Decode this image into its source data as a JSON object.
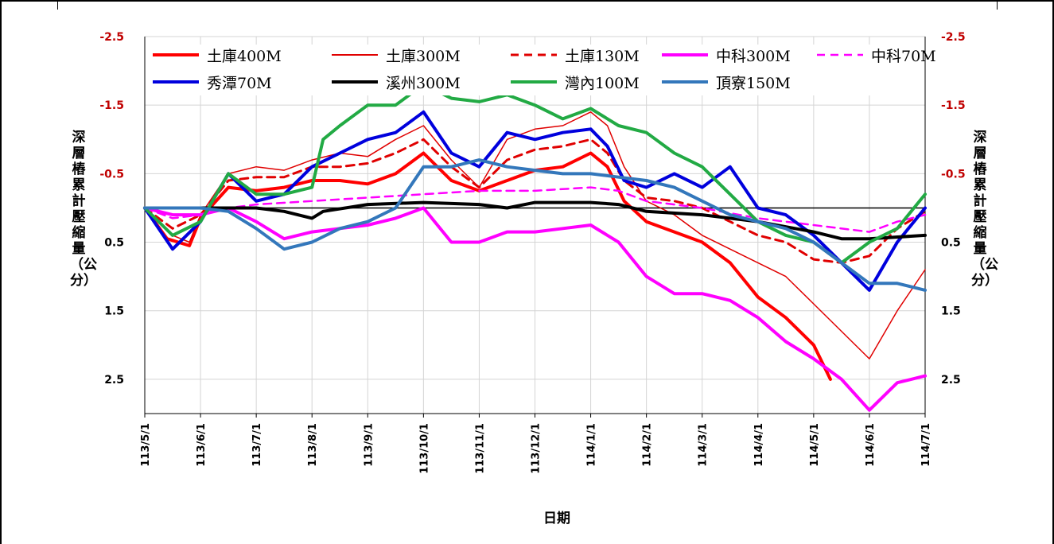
{
  "chart_data": {
    "type": "line",
    "xlabel": "日期",
    "ylabel_left": "深層樁累計壓縮量（公分）",
    "ylabel_right": "深層樁累計壓縮量（公分）",
    "ylim": [
      -2.5,
      3.0
    ],
    "y_inverted": true,
    "y_ticks": [
      "-2.5",
      "-1.5",
      "-0.5",
      "0.5",
      "1.5",
      "2.5"
    ],
    "y_tick_values": [
      -2.5,
      -1.5,
      -0.5,
      0.5,
      1.5,
      2.5
    ],
    "y_tick_color_negative": "#c00000",
    "x_ticks": [
      "113/5/1",
      "113/6/1",
      "113/7/1",
      "113/8/1",
      "113/9/1",
      "113/10/1",
      "113/11/1",
      "113/12/1",
      "114/1/1",
      "114/2/1",
      "114/3/1",
      "114/4/1",
      "114/5/1",
      "114/6/1",
      "114/7/1"
    ],
    "grid": true,
    "legend_position": "top",
    "series": [
      {
        "name": "土庫400M",
        "color": "#ff0000",
        "width": 4,
        "dash": "",
        "points": [
          [
            0,
            0
          ],
          [
            0.4,
            0.45
          ],
          [
            0.8,
            0.55
          ],
          [
            1,
            0.15
          ],
          [
            1.5,
            -0.3
          ],
          [
            2,
            -0.25
          ],
          [
            2.5,
            -0.3
          ],
          [
            3,
            -0.4
          ],
          [
            3.5,
            -0.4
          ],
          [
            4,
            -0.35
          ],
          [
            4.5,
            -0.5
          ],
          [
            5,
            -0.8
          ],
          [
            5.5,
            -0.4
          ],
          [
            6,
            -0.25
          ],
          [
            6.5,
            -0.4
          ],
          [
            7,
            -0.55
          ],
          [
            7.5,
            -0.6
          ],
          [
            8,
            -0.8
          ],
          [
            8.3,
            -0.6
          ],
          [
            8.6,
            -0.1
          ],
          [
            9,
            0.2
          ],
          [
            9.5,
            0.35
          ],
          [
            10,
            0.5
          ],
          [
            10.5,
            0.8
          ],
          [
            11,
            1.3
          ],
          [
            11.5,
            1.6
          ],
          [
            12,
            2.0
          ],
          [
            12.3,
            2.5
          ]
        ]
      },
      {
        "name": "土庫300M",
        "color": "#e00000",
        "width": 1.5,
        "dash": "",
        "points": [
          [
            0,
            0
          ],
          [
            0.5,
            0.4
          ],
          [
            0.8,
            0.5
          ],
          [
            1,
            0.1
          ],
          [
            1.5,
            -0.5
          ],
          [
            2,
            -0.6
          ],
          [
            2.5,
            -0.55
          ],
          [
            3,
            -0.7
          ],
          [
            3.5,
            -0.8
          ],
          [
            4,
            -0.75
          ],
          [
            4.5,
            -1.0
          ],
          [
            5,
            -1.2
          ],
          [
            5.5,
            -0.7
          ],
          [
            6,
            -0.3
          ],
          [
            6.5,
            -1.0
          ],
          [
            7,
            -1.15
          ],
          [
            7.5,
            -1.2
          ],
          [
            8,
            -1.4
          ],
          [
            8.3,
            -1.2
          ],
          [
            8.6,
            -0.6
          ],
          [
            9,
            -0.1
          ],
          [
            9.5,
            0.1
          ],
          [
            10,
            0.4
          ],
          [
            10.5,
            0.6
          ],
          [
            11,
            0.8
          ],
          [
            11.5,
            1.0
          ],
          [
            12,
            1.4
          ],
          [
            12.5,
            1.8
          ],
          [
            13,
            2.2
          ],
          [
            13.5,
            1.5
          ],
          [
            14,
            0.9
          ]
        ]
      },
      {
        "name": "土庫130M",
        "color": "#e00000",
        "width": 3,
        "dash": "10,7",
        "points": [
          [
            0,
            0
          ],
          [
            0.5,
            0.3
          ],
          [
            1,
            0.1
          ],
          [
            1.5,
            -0.4
          ],
          [
            2,
            -0.45
          ],
          [
            2.5,
            -0.45
          ],
          [
            3,
            -0.6
          ],
          [
            3.5,
            -0.6
          ],
          [
            4,
            -0.65
          ],
          [
            4.5,
            -0.8
          ],
          [
            5,
            -1.0
          ],
          [
            5.5,
            -0.6
          ],
          [
            6,
            -0.3
          ],
          [
            6.5,
            -0.7
          ],
          [
            7,
            -0.85
          ],
          [
            7.5,
            -0.9
          ],
          [
            8,
            -1.0
          ],
          [
            8.3,
            -0.8
          ],
          [
            8.6,
            -0.4
          ],
          [
            9,
            -0.15
          ],
          [
            9.5,
            -0.1
          ],
          [
            10,
            0.0
          ],
          [
            10.5,
            0.2
          ],
          [
            11,
            0.4
          ],
          [
            11.5,
            0.5
          ],
          [
            12,
            0.75
          ],
          [
            12.5,
            0.8
          ],
          [
            13,
            0.7
          ],
          [
            13.5,
            0.3
          ],
          [
            14,
            0.05
          ]
        ]
      },
      {
        "name": "中科300M",
        "color": "#ff00ff",
        "width": 4,
        "dash": "",
        "points": [
          [
            0,
            0
          ],
          [
            0.5,
            0.1
          ],
          [
            1,
            0.1
          ],
          [
            1.5,
            0.0
          ],
          [
            2,
            0.2
          ],
          [
            2.5,
            0.45
          ],
          [
            3,
            0.35
          ],
          [
            3.5,
            0.3
          ],
          [
            4,
            0.25
          ],
          [
            4.5,
            0.15
          ],
          [
            5,
            0.0
          ],
          [
            5.5,
            0.5
          ],
          [
            6,
            0.5
          ],
          [
            6.5,
            0.35
          ],
          [
            7,
            0.35
          ],
          [
            7.5,
            0.3
          ],
          [
            8,
            0.25
          ],
          [
            8.5,
            0.5
          ],
          [
            9,
            1.0
          ],
          [
            9.5,
            1.25
          ],
          [
            10,
            1.25
          ],
          [
            10.5,
            1.35
          ],
          [
            11,
            1.6
          ],
          [
            11.5,
            1.95
          ],
          [
            12,
            2.2
          ],
          [
            12.5,
            2.5
          ],
          [
            13,
            2.95
          ],
          [
            13.5,
            2.55
          ],
          [
            14,
            2.45
          ]
        ]
      },
      {
        "name": "中科70M",
        "color": "#ff00ff",
        "width": 2.5,
        "dash": "10,7",
        "points": [
          [
            0,
            0
          ],
          [
            0.5,
            0.15
          ],
          [
            1,
            0.1
          ],
          [
            1.5,
            0.0
          ],
          [
            2,
            -0.05
          ],
          [
            3,
            -0.1
          ],
          [
            4,
            -0.15
          ],
          [
            5,
            -0.2
          ],
          [
            6,
            -0.25
          ],
          [
            7,
            -0.25
          ],
          [
            8,
            -0.3
          ],
          [
            8.5,
            -0.25
          ],
          [
            9,
            -0.1
          ],
          [
            10,
            0.0
          ],
          [
            11,
            0.15
          ],
          [
            12,
            0.25
          ],
          [
            13,
            0.35
          ],
          [
            13.5,
            0.2
          ],
          [
            14,
            0.1
          ]
        ]
      },
      {
        "name": "秀潭70M",
        "color": "#0000dd",
        "width": 4,
        "dash": "",
        "points": [
          [
            0,
            0
          ],
          [
            0.5,
            0.6
          ],
          [
            1,
            0.2
          ],
          [
            1.5,
            -0.5
          ],
          [
            2,
            -0.1
          ],
          [
            2.5,
            -0.2
          ],
          [
            3,
            -0.6
          ],
          [
            3.5,
            -0.8
          ],
          [
            4,
            -1.0
          ],
          [
            4.5,
            -1.1
          ],
          [
            5,
            -1.4
          ],
          [
            5.5,
            -0.8
          ],
          [
            6,
            -0.6
          ],
          [
            6.5,
            -1.1
          ],
          [
            7,
            -1.0
          ],
          [
            7.5,
            -1.1
          ],
          [
            8,
            -1.15
          ],
          [
            8.3,
            -0.9
          ],
          [
            8.6,
            -0.4
          ],
          [
            9,
            -0.3
          ],
          [
            9.5,
            -0.5
          ],
          [
            10,
            -0.3
          ],
          [
            10.5,
            -0.6
          ],
          [
            11,
            0.0
          ],
          [
            11.5,
            0.1
          ],
          [
            12,
            0.4
          ],
          [
            12.5,
            0.8
          ],
          [
            13,
            1.2
          ],
          [
            13.5,
            0.5
          ],
          [
            14,
            0.0
          ]
        ]
      },
      {
        "name": "溪州300M",
        "color": "#000000",
        "width": 4,
        "dash": "",
        "points": [
          [
            0,
            0
          ],
          [
            1,
            0.0
          ],
          [
            2,
            0.0
          ],
          [
            2.5,
            0.05
          ],
          [
            3,
            0.15
          ],
          [
            3.2,
            0.05
          ],
          [
            4,
            -0.05
          ],
          [
            5,
            -0.08
          ],
          [
            6,
            -0.05
          ],
          [
            6.5,
            0.0
          ],
          [
            7,
            -0.08
          ],
          [
            8,
            -0.08
          ],
          [
            8.5,
            -0.05
          ],
          [
            9,
            0.05
          ],
          [
            10,
            0.1
          ],
          [
            11,
            0.2
          ],
          [
            12,
            0.35
          ],
          [
            12.5,
            0.45
          ],
          [
            13,
            0.45
          ],
          [
            14,
            0.4
          ]
        ]
      },
      {
        "name": "灣內100M",
        "color": "#22aa44",
        "width": 4,
        "dash": "",
        "points": [
          [
            0,
            0
          ],
          [
            0.5,
            0.4
          ],
          [
            1,
            0.2
          ],
          [
            1.5,
            -0.5
          ],
          [
            2,
            -0.2
          ],
          [
            2.5,
            -0.2
          ],
          [
            3,
            -0.3
          ],
          [
            3.2,
            -1.0
          ],
          [
            3.5,
            -1.2
          ],
          [
            4,
            -1.5
          ],
          [
            4.5,
            -1.5
          ],
          [
            5,
            -1.8
          ],
          [
            5.5,
            -1.6
          ],
          [
            6,
            -1.55
          ],
          [
            6.5,
            -1.65
          ],
          [
            7,
            -1.5
          ],
          [
            7.5,
            -1.3
          ],
          [
            8,
            -1.45
          ],
          [
            8.5,
            -1.2
          ],
          [
            9,
            -1.1
          ],
          [
            9.5,
            -0.8
          ],
          [
            10,
            -0.6
          ],
          [
            10.5,
            -0.2
          ],
          [
            11,
            0.2
          ],
          [
            11.5,
            0.4
          ],
          [
            12,
            0.5
          ],
          [
            12.5,
            0.8
          ],
          [
            13,
            0.5
          ],
          [
            13.5,
            0.3
          ],
          [
            14,
            -0.2
          ]
        ]
      },
      {
        "name": "頂寮150M",
        "color": "#3377bb",
        "width": 4,
        "dash": "",
        "points": [
          [
            0,
            0
          ],
          [
            1,
            0.0
          ],
          [
            1.5,
            0.05
          ],
          [
            2,
            0.3
          ],
          [
            2.5,
            0.6
          ],
          [
            3,
            0.5
          ],
          [
            3.5,
            0.3
          ],
          [
            4,
            0.2
          ],
          [
            4.5,
            0.0
          ],
          [
            5,
            -0.6
          ],
          [
            5.5,
            -0.6
          ],
          [
            6,
            -0.7
          ],
          [
            6.5,
            -0.6
          ],
          [
            7,
            -0.55
          ],
          [
            7.5,
            -0.5
          ],
          [
            8,
            -0.5
          ],
          [
            8.5,
            -0.45
          ],
          [
            9,
            -0.4
          ],
          [
            9.5,
            -0.3
          ],
          [
            10,
            -0.1
          ],
          [
            10.5,
            0.1
          ],
          [
            11,
            0.2
          ],
          [
            11.5,
            0.3
          ],
          [
            12,
            0.5
          ],
          [
            12.5,
            0.8
          ],
          [
            13,
            1.1
          ],
          [
            13.5,
            1.1
          ],
          [
            14,
            1.2
          ]
        ]
      }
    ]
  }
}
